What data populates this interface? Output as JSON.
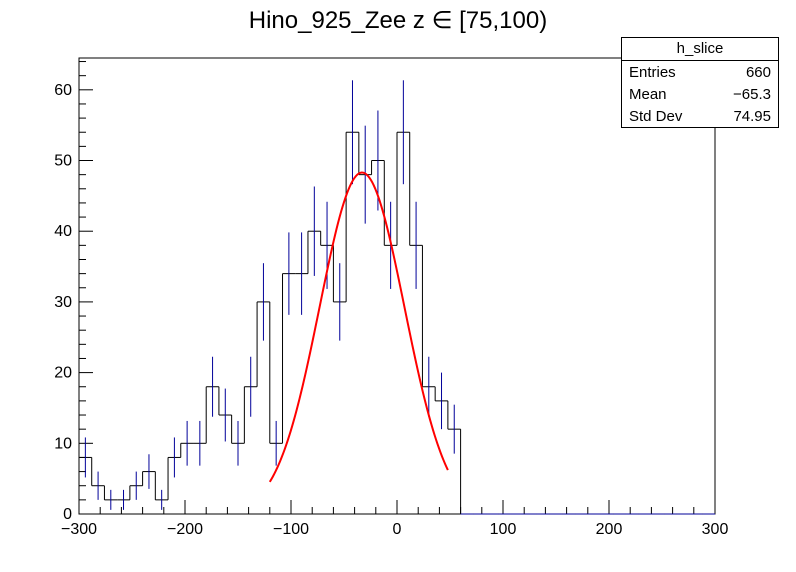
{
  "chart_data": {
    "type": "histogram",
    "title_main": "Hino_925_Zee z",
    "title_symbol": "∈",
    "title_range": "[75,100)",
    "xlim": [
      -300,
      300
    ],
    "ylim": [
      0,
      64.5
    ],
    "x_ticks": [
      -300,
      -200,
      -100,
      0,
      100,
      200,
      300
    ],
    "x_tick_labels": [
      "−300",
      "−200",
      "−100",
      "0",
      "100",
      "200",
      "300"
    ],
    "y_ticks": [
      0,
      10,
      20,
      30,
      40,
      50,
      60
    ],
    "bin_width": 12,
    "bin_edges_start": -300,
    "counts": [
      8,
      4,
      2,
      2,
      4,
      6,
      2,
      8,
      10,
      10,
      18,
      14,
      10,
      18,
      30,
      10,
      34,
      34,
      40,
      38,
      30,
      54,
      48,
      50,
      38,
      54,
      38,
      18,
      16,
      12,
      0,
      0,
      0,
      0,
      0,
      0,
      0,
      0,
      0,
      0,
      0,
      0,
      0,
      0,
      0,
      0,
      0,
      0,
      0,
      0
    ],
    "fit": {
      "function": "gaus",
      "constant": 48.3,
      "mean": -33,
      "sigma": 40,
      "x_range": [
        -120,
        48
      ],
      "color": "#ff0000"
    },
    "histogram_color": "#000000",
    "error_color": "#000099",
    "legend_placement": "top-right"
  },
  "stats": {
    "name": "h_slice",
    "entries_label": "Entries",
    "entries_value": "660",
    "mean_label": "Mean",
    "mean_value": "−65.3",
    "std_label": "Std Dev",
    "std_value": "74.95"
  }
}
